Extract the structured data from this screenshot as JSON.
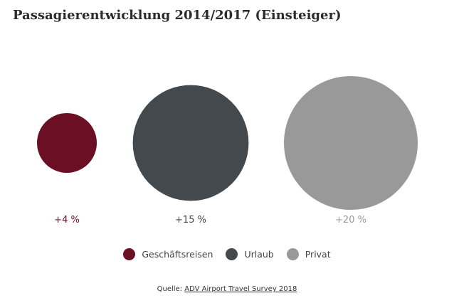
{
  "page": {
    "title": "Passagierentwicklung 2014/2017 (Einsteiger)"
  },
  "chart_data": {
    "type": "bubble",
    "title": "Passagierentwicklung 2014/2017 (Einsteiger)",
    "categories": [
      "Geschäftsreisen",
      "Urlaub",
      "Privat"
    ],
    "values": [
      4,
      15,
      20
    ],
    "unit": "%",
    "data_labels": [
      "+4 %",
      "+15 %",
      "+20 %"
    ],
    "colors": [
      "#6b0f24",
      "#44494d",
      "#999999"
    ],
    "label_colors": [
      "#6b0f24",
      "#444444",
      "#999999"
    ],
    "legend_position": "bottom",
    "grid": false
  },
  "legend": {
    "items": [
      {
        "label": "Geschäftsreisen",
        "color": "#6b0f24"
      },
      {
        "label": "Urlaub",
        "color": "#44494d"
      },
      {
        "label": "Privat",
        "color": "#999999"
      }
    ]
  },
  "source": {
    "prefix": "Quelle: ",
    "link_text": "ADV Airport Travel Survey 2018"
  }
}
